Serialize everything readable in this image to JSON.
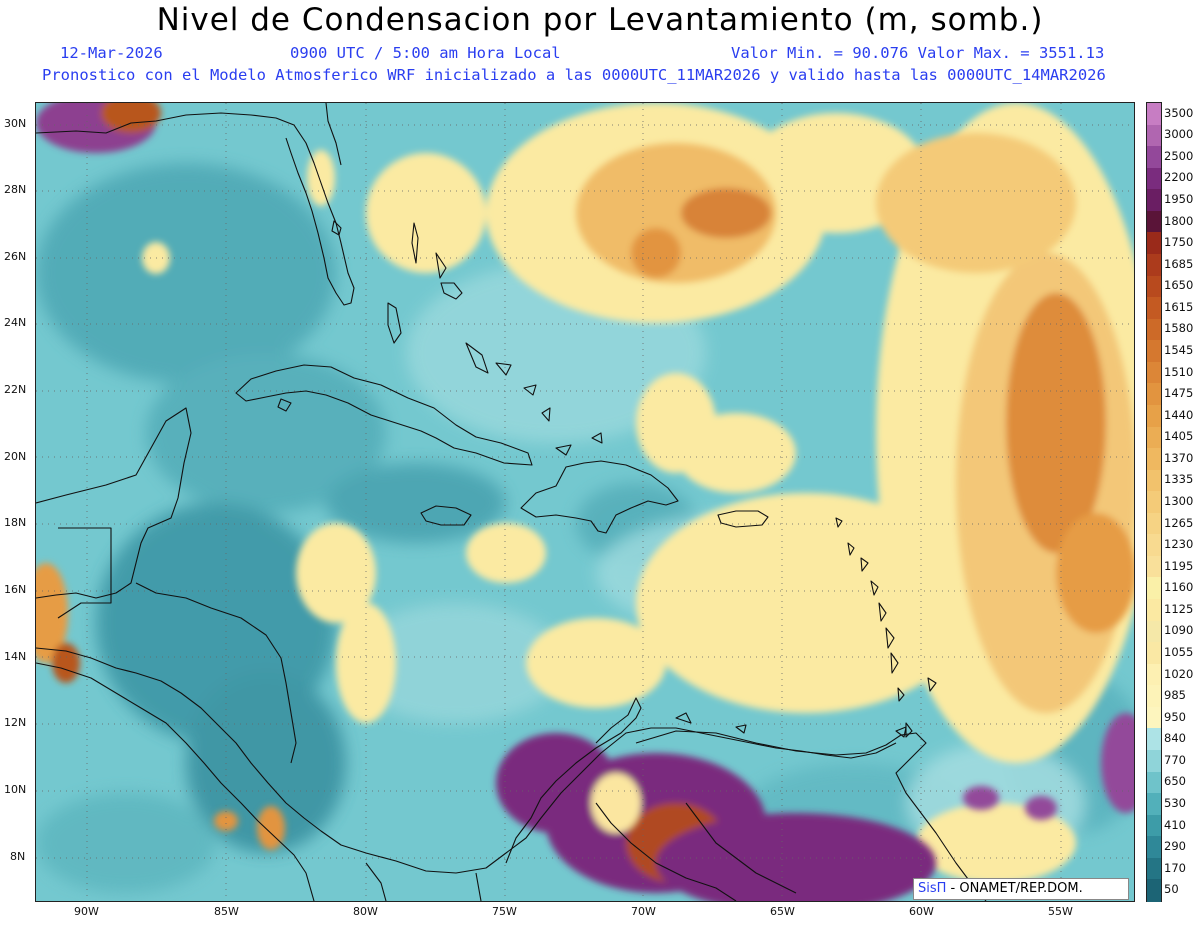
{
  "title": "Nivel de Condensacion por Levantamiento (m, somb.)",
  "subtitle": {
    "date": "12-Mar-2026",
    "time": "0900 UTC / 5:00 am Hora Local",
    "minmax": "Valor Min. = 90.076   Valor Max. = 3551.13",
    "model": "Pronostico con el Modelo Atmosferico WRF inicializado a las 0000UTC_11MAR2026 y valido hasta las  0000UTC_14MAR2026"
  },
  "lat_labels": [
    "30N",
    "28N",
    "26N",
    "24N",
    "22N",
    "20N",
    "18N",
    "16N",
    "14N",
    "12N",
    "10N",
    "8N"
  ],
  "lon_labels": [
    "90W",
    "85W",
    "80W",
    "75W",
    "70W",
    "65W",
    "60W",
    "55W"
  ],
  "colorbar": {
    "labels": [
      "3500",
      "3000",
      "2500",
      "2200",
      "1950",
      "1800",
      "1750",
      "1685",
      "1650",
      "1615",
      "1580",
      "1545",
      "1510",
      "1475",
      "1440",
      "1405",
      "1370",
      "1335",
      "1300",
      "1265",
      "1230",
      "1195",
      "1160",
      "1125",
      "1090",
      "1055",
      "1020",
      "985",
      "950",
      "840",
      "770",
      "650",
      "530",
      "410",
      "290",
      "170",
      "50"
    ],
    "colors": [
      "#c77dc3",
      "#b066b0",
      "#93489a",
      "#7a2c7e",
      "#6a1e63",
      "#5a1438",
      "#9a2a1a",
      "#ac3b1c",
      "#b84a1e",
      "#c45a22",
      "#cd6a28",
      "#d5782f",
      "#dc8637",
      "#e2943f",
      "#e7a148",
      "#ebad54",
      "#efb860",
      "#f2c26c",
      "#f4cb78",
      "#f6d384",
      "#f8da90",
      "#f9e09a",
      "#faf0a8",
      "#fbe9a2",
      "#f5e8a8",
      "#fae8a4",
      "#fdf0b2",
      "#fdf3b8",
      "#fdf5be",
      "#ade3e6",
      "#8fd4d9",
      "#6fc3ca",
      "#52b0ba",
      "#3d9ca8",
      "#2f8898",
      "#247585",
      "#1c6475"
    ]
  },
  "credit": {
    "logo": "SisΠ",
    "text": " - ONAMET/REP.DOM."
  }
}
